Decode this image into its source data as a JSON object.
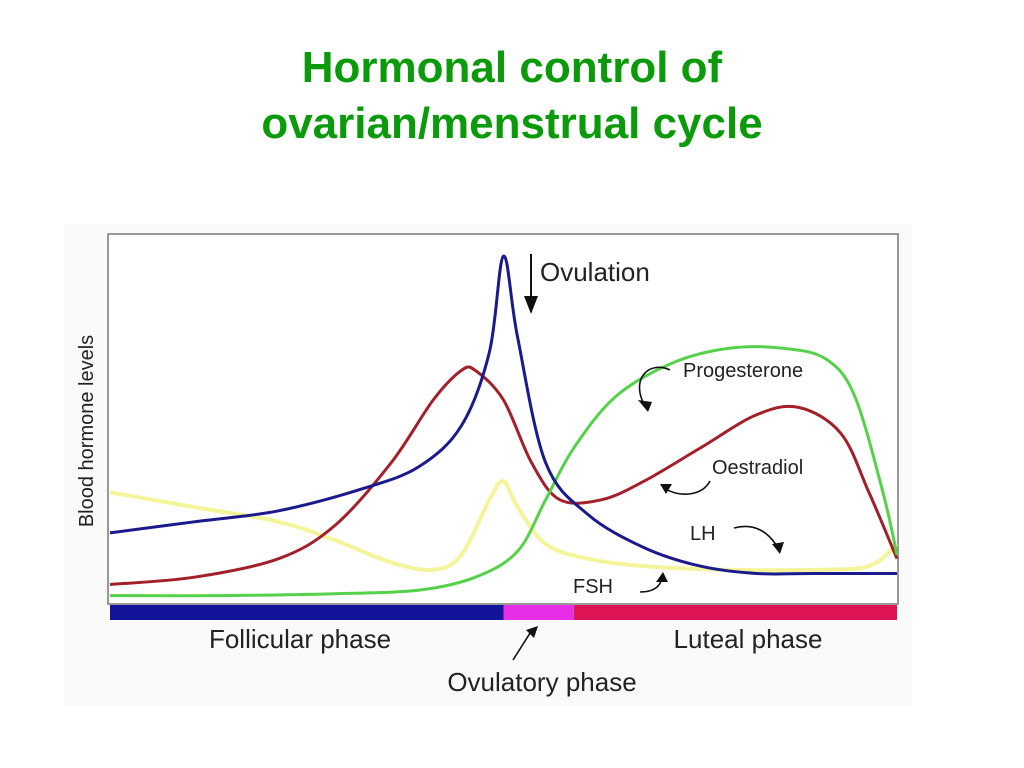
{
  "slide": {
    "title_line1": "Hormonal control of",
    "title_line2": "ovarian/menstrual cycle"
  },
  "chart_data": {
    "type": "line",
    "ylabel": "Blood hormone levels",
    "xlabel": "",
    "xlim": [
      0,
      28
    ],
    "ylim": [
      0,
      100
    ],
    "grid": false,
    "colors": {
      "LH": "#1a1a8c",
      "Oestradiol": "#a3202a",
      "Progesterone": "#55d24a",
      "FSH": "#f4f49a"
    },
    "series": [
      {
        "name": "LH",
        "x": [
          0,
          3,
          6,
          9,
          11,
          12.5,
          13.5,
          14,
          14.5,
          15.5,
          17,
          19,
          21,
          23,
          25,
          28
        ],
        "y": [
          19,
          22,
          25,
          31,
          37,
          48,
          68,
          94,
          72,
          38,
          24,
          15,
          10,
          8,
          8,
          8
        ]
      },
      {
        "name": "Oestradiol",
        "x": [
          0,
          3,
          6,
          8,
          10,
          11.5,
          12.5,
          13,
          14,
          15,
          16,
          17.5,
          19,
          21,
          23,
          24.5,
          26,
          27,
          28
        ],
        "y": [
          5,
          7,
          12,
          21,
          38,
          55,
          63,
          63,
          55,
          38,
          28,
          28,
          33,
          42,
          51,
          53,
          46,
          30,
          12
        ]
      },
      {
        "name": "Progesterone",
        "x": [
          0,
          4,
          8,
          11,
          13,
          14.5,
          15.5,
          16.5,
          18,
          20,
          22,
          24,
          25.5,
          26.5,
          27.5,
          28
        ],
        "y": [
          2,
          2,
          2.5,
          3.5,
          7,
          14,
          28,
          42,
          56,
          65,
          69,
          69,
          66,
          56,
          30,
          13
        ]
      },
      {
        "name": "FSH",
        "x": [
          0,
          3,
          6,
          8,
          10,
          11.5,
          12.5,
          13.5,
          14,
          14.5,
          15.5,
          17,
          19,
          22,
          25,
          27,
          28
        ],
        "y": [
          30,
          26,
          22,
          17,
          11,
          9,
          13,
          28,
          33,
          26,
          16,
          12,
          10,
          9,
          9,
          10,
          16
        ]
      }
    ],
    "annotations": {
      "ovulation": "Ovulation",
      "progesterone": "Progesterone",
      "oestradiol": "Oestradiol",
      "lh": "LH",
      "fsh": "FSH"
    },
    "phases": [
      {
        "name": "Follicular phase",
        "start": 0,
        "end": 14,
        "color": "#14149a"
      },
      {
        "name": "Ovulatory phase",
        "start": 14,
        "end": 16.5,
        "color": "#e62ee6"
      },
      {
        "name": "Luteal phase",
        "start": 16.5,
        "end": 28,
        "color": "#dd1555"
      }
    ]
  }
}
